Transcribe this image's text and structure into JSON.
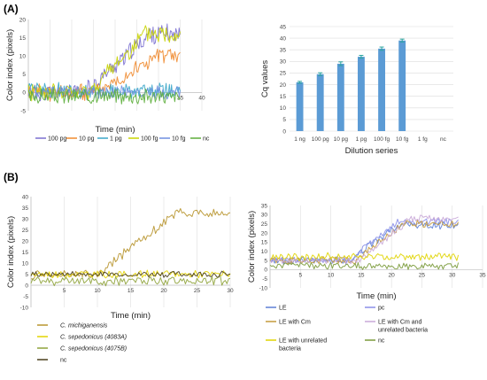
{
  "panel_labels": [
    "(A)",
    "(B)"
  ],
  "chart_data": [
    {
      "id": "A1",
      "type": "line",
      "xlabel": "Time (min)",
      "ylabel": "Color index (pixels)",
      "xlim": [
        0,
        40
      ],
      "ylim": [
        -5,
        20
      ],
      "x_ticks": [
        "35",
        "40"
      ],
      "y_ticks": [
        "-5",
        "0",
        "5",
        "10",
        "15",
        "20"
      ],
      "grid": "vertical",
      "legend_position": "bottom",
      "series": [
        {
          "name": "100 pg",
          "color": "#7a6fd0",
          "pattern": {
            "t0": 0,
            "t1": 35,
            "base": 0,
            "rise_start": 13,
            "rise_end": 28,
            "plateau": 16,
            "noise": 2.2,
            "seed": 11
          }
        },
        {
          "name": "10 pg",
          "color": "#f08a2e",
          "pattern": {
            "t0": 0,
            "t1": 35,
            "base": 0,
            "rise_start": 15,
            "rise_end": 30,
            "plateau": 10,
            "noise": 2.0,
            "seed": 23
          }
        },
        {
          "name": "1 pg",
          "color": "#3aa6c9",
          "pattern": {
            "t0": 0,
            "t1": 35,
            "base": 0.5,
            "rise_start": 99,
            "rise_end": 100,
            "plateau": 0.5,
            "noise": 1.8,
            "seed": 37
          }
        },
        {
          "name": "100 fg",
          "color": "#c8d400",
          "pattern": {
            "t0": 0,
            "t1": 35,
            "base": 0,
            "rise_start": 14,
            "rise_end": 27,
            "plateau": 16,
            "noise": 2.2,
            "seed": 41
          }
        },
        {
          "name": "10 fg",
          "color": "#6f8fe0",
          "pattern": {
            "t0": 0,
            "t1": 35,
            "base": 0,
            "rise_start": 99,
            "rise_end": 100,
            "plateau": 0,
            "noise": 1.6,
            "seed": 53
          }
        },
        {
          "name": "nc",
          "color": "#5cae3a",
          "pattern": {
            "t0": 0,
            "t1": 35,
            "base": -1,
            "rise_start": 99,
            "rise_end": 100,
            "plateau": -1,
            "noise": 1.8,
            "seed": 67
          }
        }
      ]
    },
    {
      "id": "A2",
      "type": "bar",
      "xlabel": "Dilution series",
      "ylabel": "Cq values",
      "ylim": [
        0,
        45
      ],
      "y_ticks": [
        "0",
        "5",
        "10",
        "15",
        "20",
        "25",
        "30",
        "35",
        "40",
        "45"
      ],
      "categories": [
        "1 ng",
        "100 pg",
        "10 pg",
        "1 pg",
        "100 fg",
        "10 fg",
        "1 fg",
        "nc"
      ],
      "values": [
        21,
        24.5,
        29,
        32,
        35.5,
        39,
        0,
        0
      ],
      "error": [
        0.4,
        0.6,
        0.8,
        0.6,
        0.7,
        0.6,
        0,
        0
      ],
      "bar_color": "#5b9bd5",
      "error_color": "#2ca5a0",
      "grid": "horizontal"
    },
    {
      "id": "B1",
      "type": "line",
      "xlabel": "Time (min)",
      "ylabel": "Color index (pixels)",
      "xlim": [
        0,
        30
      ],
      "ylim": [
        -10,
        40
      ],
      "x_ticks": [
        "5",
        "10",
        "15",
        "20",
        "25",
        "30"
      ],
      "y_ticks": [
        "-10",
        "-5",
        "0",
        "5",
        "10",
        "15",
        "20",
        "25",
        "30",
        "35",
        "40"
      ],
      "grid": "vertical",
      "legend_position": "bottom",
      "series": [
        {
          "name": "C. michiganensis",
          "color": "#b8952e",
          "pattern": {
            "t0": 0,
            "t1": 30,
            "base": 5,
            "rise_start": 10,
            "rise_end": 22,
            "plateau": 33,
            "noise": 1.8,
            "seed": 71
          }
        },
        {
          "name": "C. sepedonicus (4083A)",
          "color": "#e3d400",
          "pattern": {
            "t0": 0,
            "t1": 30,
            "base": 5,
            "rise_start": 99,
            "rise_end": 100,
            "plateau": 5,
            "noise": 1.5,
            "seed": 83
          }
        },
        {
          "name": "C. sepedonicus (4075B)",
          "color": "#8fa33a",
          "pattern": {
            "t0": 0,
            "t1": 30,
            "base": 2,
            "rise_start": 99,
            "rise_end": 100,
            "plateau": 2,
            "noise": 1.8,
            "seed": 97
          }
        },
        {
          "name": "nc",
          "color": "#4a3f1c",
          "pattern": {
            "t0": 0,
            "t1": 30,
            "base": 5,
            "rise_start": 99,
            "rise_end": 100,
            "plateau": 5,
            "noise": 1.2,
            "seed": 101
          }
        }
      ]
    },
    {
      "id": "B2",
      "type": "line",
      "xlabel": "Time (min)",
      "ylabel": "Color index (pixels)",
      "xlim": [
        0,
        35
      ],
      "ylim": [
        -10,
        35
      ],
      "x_ticks": [
        "5",
        "10",
        "15",
        "20",
        "25",
        "30",
        "35"
      ],
      "y_ticks": [
        "-10",
        "-5",
        "0",
        "5",
        "10",
        "15",
        "20",
        "25",
        "30",
        "35"
      ],
      "grid": "vertical",
      "legend_position": "bottom",
      "series": [
        {
          "name": "LE",
          "color": "#5d7fd6",
          "pattern": {
            "t0": 0,
            "t1": 31,
            "base": 5,
            "rise_start": 13,
            "rise_end": 21,
            "plateau": 24,
            "noise": 1.8,
            "seed": 113
          }
        },
        {
          "name": "pc",
          "color": "#8a8fe8",
          "pattern": {
            "t0": 0,
            "t1": 31,
            "base": 5,
            "rise_start": 13,
            "rise_end": 21,
            "plateau": 26,
            "noise": 1.8,
            "seed": 127
          }
        },
        {
          "name": "LE with Cm",
          "color": "#c49a3a",
          "pattern": {
            "t0": 0,
            "t1": 31,
            "base": 5,
            "rise_start": 14,
            "rise_end": 22,
            "plateau": 25,
            "noise": 1.8,
            "seed": 131
          }
        },
        {
          "name": "LE with Cm and unrelated bacteria",
          "color": "#c9a9d8",
          "pattern": {
            "t0": 0,
            "t1": 31,
            "base": 5,
            "rise_start": 15,
            "rise_end": 23,
            "plateau": 28,
            "noise": 1.8,
            "seed": 139
          }
        },
        {
          "name": "LE with unrelated bacteria",
          "color": "#e0d400",
          "pattern": {
            "t0": 0,
            "t1": 31,
            "base": 7,
            "rise_start": 99,
            "rise_end": 100,
            "plateau": 7,
            "noise": 1.8,
            "seed": 149
          }
        },
        {
          "name": "nc",
          "color": "#7a9a3a",
          "pattern": {
            "t0": 0,
            "t1": 31,
            "base": 2,
            "rise_start": 99,
            "rise_end": 100,
            "plateau": 2,
            "noise": 1.8,
            "seed": 157
          }
        }
      ]
    }
  ]
}
